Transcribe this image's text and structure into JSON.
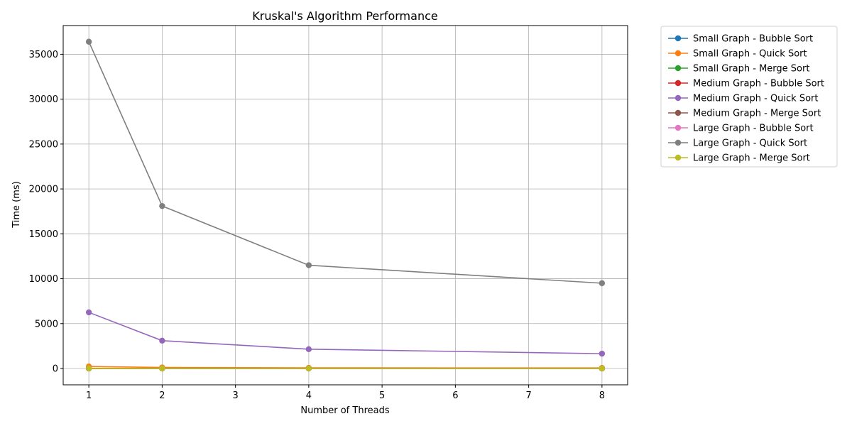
{
  "chart_data": {
    "type": "line",
    "title": "Kruskal's Algorithm Performance",
    "xlabel": "Number of Threads",
    "ylabel": "Time (ms)",
    "x": [
      1,
      2,
      4,
      8
    ],
    "xlim": [
      0.65,
      8.35
    ],
    "ylim": [
      -1820,
      38200
    ],
    "xticks": [
      1,
      2,
      3,
      4,
      5,
      6,
      7,
      8
    ],
    "yticks": [
      0,
      5000,
      10000,
      15000,
      20000,
      25000,
      30000,
      35000
    ],
    "grid": true,
    "legend_position": "outside-right",
    "series": [
      {
        "name": "Small Graph - Bubble Sort",
        "color": "#1f77b4",
        "values": [
          5,
          3,
          2,
          2
        ]
      },
      {
        "name": "Small Graph - Quick Sort",
        "color": "#ff7f0e",
        "values": [
          220,
          110,
          75,
          60
        ]
      },
      {
        "name": "Small Graph - Merge Sort",
        "color": "#2ca02c",
        "values": [
          3,
          2,
          2,
          2
        ]
      },
      {
        "name": "Medium Graph - Bubble Sort",
        "color": "#d62728",
        "values": [
          8,
          5,
          4,
          3
        ]
      },
      {
        "name": "Medium Graph - Quick Sort",
        "color": "#9467bd",
        "values": [
          6250,
          3100,
          2150,
          1650
        ]
      },
      {
        "name": "Medium Graph - Merge Sort",
        "color": "#8c564b",
        "values": [
          6,
          4,
          3,
          3
        ]
      },
      {
        "name": "Large Graph - Bubble Sort",
        "color": "#e377c2",
        "values": [
          12,
          8,
          6,
          5
        ]
      },
      {
        "name": "Large Graph - Quick Sort",
        "color": "#7f7f7f",
        "values": [
          36400,
          18100,
          11500,
          9500
        ]
      },
      {
        "name": "Large Graph - Merge Sort",
        "color": "#bcbd22",
        "values": [
          10,
          6,
          5,
          4
        ]
      }
    ]
  }
}
